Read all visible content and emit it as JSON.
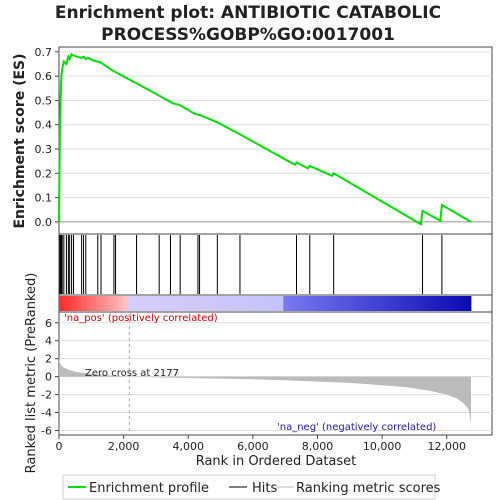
{
  "title_lines": [
    "Enrichment plot: ANTIBIOTIC CATABOLIC",
    "PROCESS%GOBP%GO:0017001"
  ],
  "colors": {
    "profile": "#00dd00",
    "hits": "#000000",
    "metric": "#bbbbbb",
    "grid": "#dddddd",
    "pos_label": "#cc0000",
    "neg_label": "#1a1aa6"
  },
  "chart_data": [
    {
      "type": "line",
      "panel": "enrichment-score",
      "ylabel": "Enrichment score (ES)",
      "xlim": [
        0,
        13400
      ],
      "ylim": [
        -0.05,
        0.72
      ],
      "yticks": [
        0.0,
        0.1,
        0.2,
        0.3,
        0.4,
        0.5,
        0.6,
        0.7
      ],
      "ytick_labels": [
        "0.0",
        "0.1",
        "0.2",
        "0.3",
        "0.4",
        "0.5",
        "0.6",
        "0.7"
      ],
      "grid": true,
      "series": [
        {
          "name": "Enrichment profile",
          "x": [
            0,
            30,
            55,
            75,
            100,
            150,
            230,
            290,
            330,
            390,
            450,
            560,
            700,
            760,
            830,
            900,
            1050,
            1200,
            1300,
            1700,
            2400,
            3100,
            3500,
            3750,
            4200,
            4350,
            4900,
            5600,
            7300,
            7350,
            7700,
            7760,
            8450,
            8500,
            11200,
            11250,
            11800,
            11850,
            12750
          ],
          "y": [
            0.0,
            0.42,
            0.53,
            0.6,
            0.63,
            0.66,
            0.65,
            0.68,
            0.67,
            0.69,
            0.685,
            0.68,
            0.675,
            0.68,
            0.67,
            0.675,
            0.665,
            0.66,
            0.655,
            0.62,
            0.57,
            0.52,
            0.49,
            0.48,
            0.445,
            0.44,
            0.41,
            0.36,
            0.235,
            0.245,
            0.22,
            0.23,
            0.19,
            0.2,
            -0.01,
            0.045,
            0.005,
            0.07,
            0.0
          ]
        }
      ],
      "hits_x": [
        30,
        55,
        75,
        100,
        150,
        230,
        290,
        330,
        390,
        450,
        700,
        760,
        830,
        1200,
        1300,
        1700,
        1750,
        2400,
        3100,
        3450,
        3750,
        4300,
        4350,
        4900,
        5600,
        7350,
        7760,
        8500,
        11250,
        11850
      ]
    },
    {
      "type": "area",
      "panel": "ranked-list-metric",
      "xlabel": "Rank in Ordered Dataset",
      "ylabel": "Ranked list metric (PreRanked)",
      "xlim": [
        0,
        13400
      ],
      "ylim": [
        -6.5,
        7.2
      ],
      "yticks": [
        -6,
        -4,
        -2,
        0,
        2,
        4,
        6
      ],
      "ytick_labels": [
        "-6",
        "-4",
        "-2",
        "0",
        "2",
        "4",
        "6"
      ],
      "xticks": [
        0,
        2000,
        4000,
        6000,
        8000,
        10000,
        12000
      ],
      "xtick_labels": [
        "0",
        "2,000",
        "4,000",
        "6,000",
        "8,000",
        "10,000",
        "12,000"
      ],
      "grid": true,
      "zero_cross_x": 2177,
      "series": [
        {
          "name": "Ranking metric scores",
          "x": [
            0,
            20,
            60,
            150,
            300,
            500,
            800,
            1200,
            1700,
            2177,
            3000,
            4000,
            5000,
            6000,
            7000,
            8000,
            9000,
            10000,
            10800,
            11500,
            12000,
            12300,
            12500,
            12650,
            12700,
            12740,
            12750
          ],
          "y": [
            2.0,
            1.6,
            1.3,
            1.0,
            0.75,
            0.55,
            0.4,
            0.25,
            0.1,
            0.0,
            -0.08,
            -0.15,
            -0.22,
            -0.3,
            -0.4,
            -0.55,
            -0.7,
            -0.95,
            -1.2,
            -1.6,
            -2.0,
            -2.4,
            -2.9,
            -3.5,
            -4.0,
            -5.0,
            -6.0
          ]
        }
      ]
    }
  ],
  "annotations": {
    "zero_cross": "Zero cross at 2177",
    "na_pos": "'na_pos' (positively correlated)",
    "na_neg": "'na_neg' (negatively correlated)"
  },
  "legend": {
    "items": [
      {
        "label": "Enrichment profile"
      },
      {
        "label": "Hits"
      },
      {
        "label": "Ranking metric scores"
      }
    ]
  }
}
